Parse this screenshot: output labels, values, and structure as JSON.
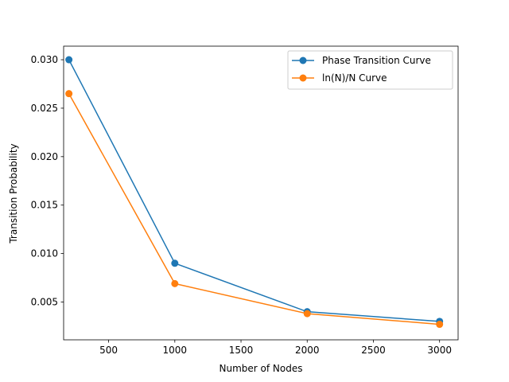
{
  "chart_data": {
    "type": "line",
    "title": "",
    "xlabel": "Number of Nodes",
    "ylabel": "Transition Probability",
    "xlim": [
      160,
      3140
    ],
    "ylim": [
      0.0011,
      0.0314
    ],
    "xticks": [
      500,
      1000,
      1500,
      2000,
      2500,
      3000
    ],
    "yticks": [
      0.005,
      0.01,
      0.015,
      0.02,
      0.025,
      0.03
    ],
    "x": [
      200,
      1000,
      2000,
      3000
    ],
    "series": [
      {
        "name": "Phase Transition Curve",
        "color": "#1f77b4",
        "marker": "circle",
        "values": [
          0.03,
          0.009,
          0.004,
          0.003
        ]
      },
      {
        "name": "ln(N)/N Curve",
        "color": "#ff7f0e",
        "marker": "circle",
        "values": [
          0.0265,
          0.0069,
          0.0038,
          0.0027
        ]
      }
    ],
    "grid": false,
    "legend_position": "top-right"
  }
}
